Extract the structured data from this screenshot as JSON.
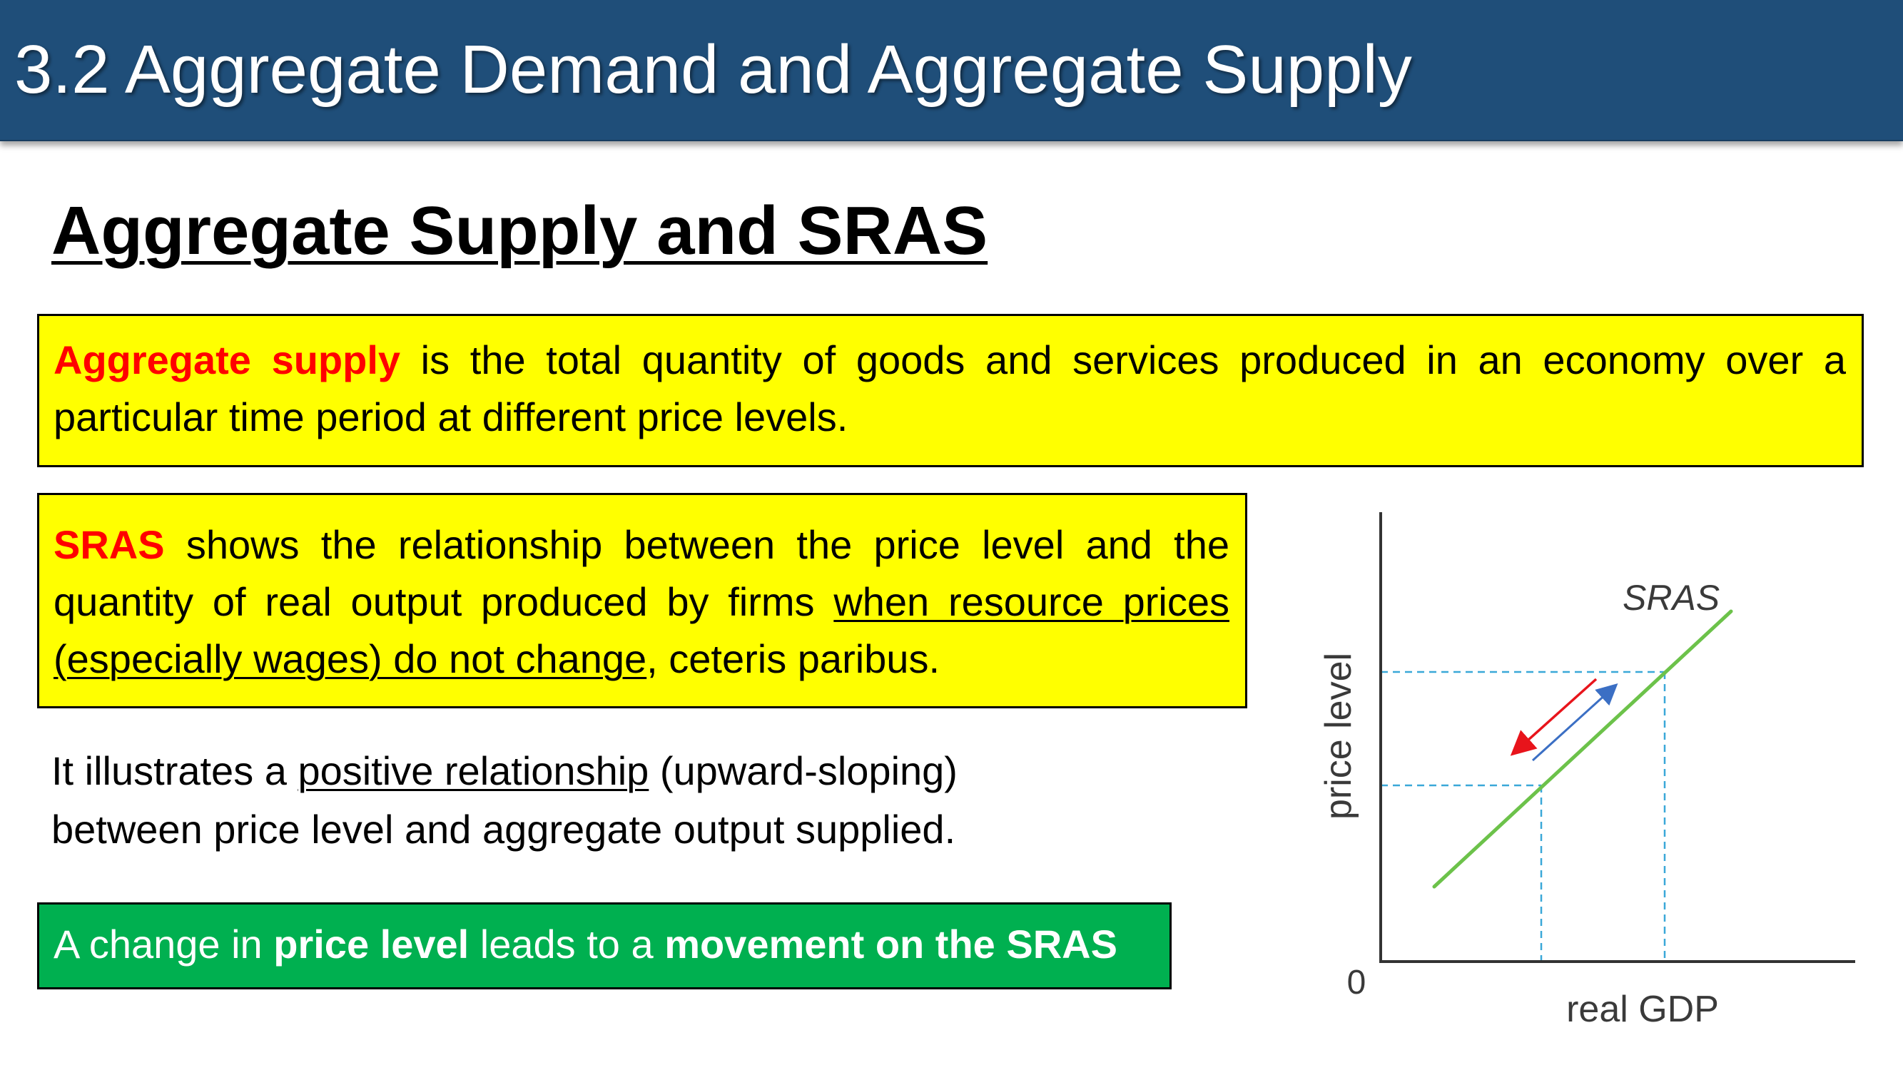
{
  "header": {
    "title": "3.2 Aggregate Demand and Aggregate Supply"
  },
  "slide": {
    "title": "Aggregate Supply and SRAS"
  },
  "definition_box": {
    "term": "Aggregate supply",
    "text": " is the total quantity of goods and services produced in an economy over a particular time period at different price levels."
  },
  "sras_box": {
    "term": "SRAS",
    "text_1": " shows the relationship between the price level and the quantity of real output produced by firms ",
    "text_underlined": "when resource prices (especially wages) do not change",
    "text_2": ", ceteris paribus."
  },
  "paragraph": {
    "text_1": "It illustrates a ",
    "text_underlined": "positive relationship",
    "text_2": " (upward-sloping) between price level and aggregate output supplied."
  },
  "green_box": {
    "part_1": "A change in ",
    "bold_1": "price level",
    "part_2": " leads to a ",
    "bold_2": "movement on the SRAS"
  },
  "diagram": {
    "curve_label": "SRAS",
    "y_axis_label": "price level",
    "x_axis_label": "real GDP",
    "origin_label": "0",
    "colors": {
      "curve": "#6cc24a",
      "guide_lines": "#3aa8d8",
      "arrow_down": "#e8141b",
      "arrow_up": "#3b6fc4",
      "axes": "#333333"
    }
  }
}
